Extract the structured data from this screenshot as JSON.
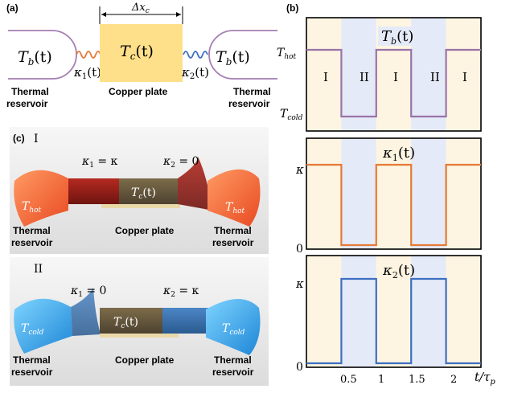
{
  "panel_a": {
    "tag": "(a)",
    "dx_label": "Δx",
    "dx_sub": "c",
    "left_res_T": "T",
    "left_res_sub": "b",
    "left_res_arg": "(t)",
    "center_T": "T",
    "center_sub": "c",
    "center_arg": "(t)",
    "right_res_T": "T",
    "right_res_sub": "b",
    "right_res_arg": "(t)",
    "k1": "κ",
    "k1_sub": "1",
    "k1_arg": "(t)",
    "k2": "κ",
    "k2_sub": "2",
    "k2_arg": "(t)",
    "left_caption_1": "Thermal",
    "left_caption_2": "reservoir",
    "center_caption": "Copper plate",
    "right_caption_1": "Thermal",
    "right_caption_2": "reservoir",
    "colors": {
      "reservoir_stroke": "#a57fb3",
      "plate_fill": "#ffe08a",
      "spring1": "#e67a38",
      "spring2": "#3e6fc2"
    }
  },
  "panel_b": {
    "tag": "(b)",
    "sub1_title": "T",
    "sub1_title_sub": "b",
    "sub1_title_arg": "(t)",
    "sub1_y_hot": "T",
    "sub1_y_hot_sub": "hot",
    "sub1_y_cold": "T",
    "sub1_y_cold_sub": "cold",
    "phase_labels": [
      "I",
      "II",
      "I",
      "II",
      "I"
    ],
    "sub2_title": "κ",
    "sub2_title_sub": "1",
    "sub2_title_arg": "(t)",
    "sub2_y_top": "κ",
    "sub2_y_zero": "0",
    "sub3_title": "κ",
    "sub3_title_sub": "2",
    "sub3_title_arg": "(t)",
    "sub3_y_top": "κ",
    "sub3_y_zero": "0",
    "x_ticks": [
      "0.5",
      "1",
      "1.5",
      "2"
    ],
    "x_label": "t/τ",
    "x_label_sub": "p",
    "colors": {
      "phase_I": "#fdf5e1",
      "phase_II": "#e4eaf7",
      "tb_line": "#9b73a8",
      "k1_line": "#e67a38",
      "k2_line": "#3e6fc2"
    }
  },
  "chart_data": [
    {
      "type": "line",
      "title": "T_b(t)",
      "xlabel": "t/τ_p",
      "ylabel": "",
      "xlim": [
        0,
        2.5
      ],
      "x": [
        0,
        0.5,
        0.5,
        1,
        1,
        1.5,
        1.5,
        2,
        2,
        2.5
      ],
      "values": [
        "T_hot",
        "T_hot",
        "T_cold",
        "T_cold",
        "T_hot",
        "T_hot",
        "T_cold",
        "T_cold",
        "T_hot",
        "T_hot"
      ],
      "level_labels": [
        "T_cold",
        "T_hot"
      ]
    },
    {
      "type": "line",
      "title": "κ_1(t)",
      "xlabel": "t/τ_p",
      "ylabel": "",
      "xlim": [
        0,
        2.5
      ],
      "ylim": [
        0,
        1
      ],
      "x": [
        0,
        0.5,
        0.5,
        1,
        1,
        1.5,
        1.5,
        2,
        2,
        2.5
      ],
      "values": [
        1,
        1,
        0,
        0,
        1,
        1,
        0,
        0,
        1,
        1
      ],
      "level_labels": [
        "0",
        "κ"
      ]
    },
    {
      "type": "line",
      "title": "κ_2(t)",
      "xlabel": "t/τ_p",
      "ylabel": "",
      "xlim": [
        0,
        2.5
      ],
      "ylim": [
        0,
        1
      ],
      "x": [
        0,
        0.5,
        0.5,
        1,
        1,
        1.5,
        1.5,
        2,
        2,
        2.5
      ],
      "values": [
        0,
        0,
        1,
        1,
        0,
        0,
        1,
        1,
        0,
        0
      ],
      "level_labels": [
        "0",
        "κ"
      ]
    }
  ],
  "panel_c": {
    "tag": "(c)",
    "state_I": "I",
    "state_II": "II",
    "I_k1": "κ",
    "I_k1_sub": "1",
    "I_k1_val": " = κ",
    "I_k2": "κ",
    "I_k2_sub": "2",
    "I_k2_val": " = 0",
    "I_left_T": "T",
    "I_left_sub": "hot",
    "I_center_T": "T",
    "I_center_sub": "c",
    "I_center_arg": "(t)",
    "I_right_T": "T",
    "I_right_sub": "hot",
    "II_k1": "κ",
    "II_k1_sub": "1",
    "II_k1_val": " = 0",
    "II_k2": "κ",
    "II_k2_sub": "2",
    "II_k2_val": " = κ",
    "II_left_T": "T",
    "II_left_sub": "cold",
    "II_center_T": "T",
    "II_center_sub": "c",
    "II_center_arg": "(t)",
    "II_right_T": "T",
    "II_right_sub": "cold",
    "caption_thermal": "Thermal",
    "caption_reservoir": "reservoir",
    "caption_plate": "Copper plate",
    "colors": {
      "hot": "#f26a3c",
      "cold": "#3fa6e8",
      "link_I": "#a8201e",
      "link_II": "#3c6fa8",
      "plate": "#6a5a3a"
    }
  }
}
